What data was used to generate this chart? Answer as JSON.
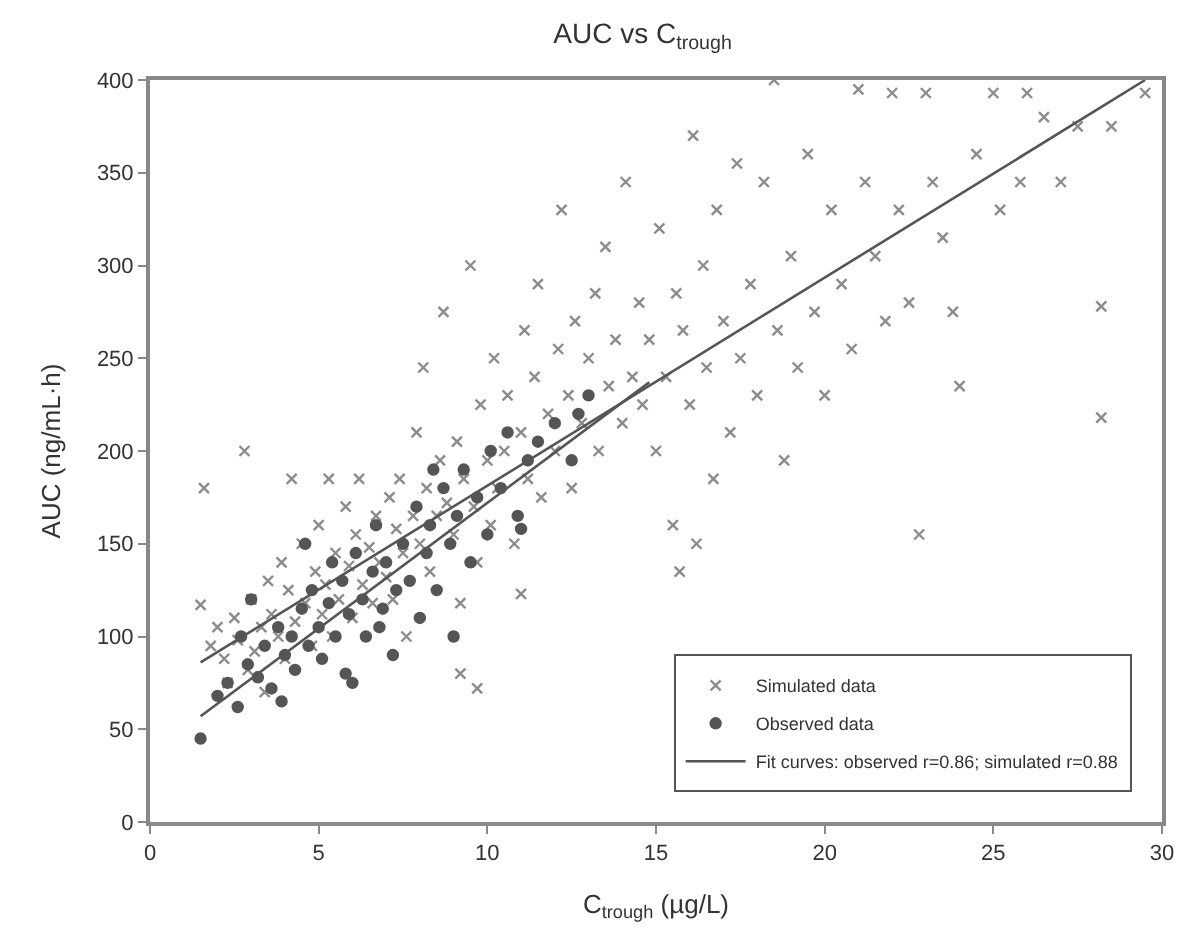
{
  "chart_data": {
    "type": "scatter",
    "title": "AUC vs C$_{trough}$",
    "xlabel": "C$_{trough}$ (µg/L)",
    "ylabel": "AUC (ng/mL·h)",
    "xlim": [
      0,
      30
    ],
    "xticks": [
      0,
      5,
      10,
      15,
      20,
      25,
      30
    ],
    "ylim": [
      0,
      400
    ],
    "yticks": [
      0,
      50,
      100,
      150,
      200,
      250,
      300,
      350,
      400
    ],
    "legend": "bottom right",
    "series": [
      {
        "name": "Simulated data",
        "marker": "cross",
        "color": "#8c8c8c",
        "x": [
          1.5,
          1.6,
          1.8,
          2,
          2.2,
          2.3,
          2.5,
          2.6,
          2.8,
          2.9,
          3,
          3.1,
          3.3,
          3.4,
          3.5,
          3.6,
          3.8,
          3.9,
          4,
          4.1,
          4.2,
          4.3,
          4.5,
          4.6,
          4.8,
          4.9,
          5,
          5.1,
          5.2,
          5.3,
          5.4,
          5.5,
          5.6,
          5.8,
          5.9,
          6,
          6.1,
          6.2,
          6.3,
          6.5,
          6.6,
          6.7,
          6.8,
          7,
          7.1,
          7.2,
          7.3,
          7.4,
          7.5,
          7.6,
          7.8,
          7.9,
          8,
          8.1,
          8.2,
          8.3,
          8.5,
          8.6,
          8.7,
          8.8,
          9,
          9.1,
          9.2,
          9.3,
          9.5,
          9.6,
          9.7,
          9.8,
          10,
          10.1,
          10.2,
          10.3,
          10.5,
          10.6,
          10.8,
          11,
          11.1,
          11.2,
          11.4,
          11.5,
          11.6,
          11.8,
          12,
          12.1,
          12.2,
          12.4,
          12.5,
          12.6,
          12.8,
          13,
          13.2,
          13.3,
          13.5,
          13.6,
          13.8,
          14,
          14.1,
          14.3,
          14.5,
          14.6,
          14.8,
          15,
          15.1,
          15.3,
          15.5,
          15.6,
          15.7,
          15.8,
          16,
          16.1,
          16.2,
          16.4,
          16.5,
          16.7,
          16.8,
          17,
          17.2,
          17.4,
          17.5,
          17.8,
          18,
          18.2,
          18.5,
          18.6,
          18.8,
          19,
          19.2,
          19.5,
          19.7,
          20,
          20.2,
          20.5,
          20.8,
          21,
          21.2,
          21.5,
          21.8,
          22,
          22.2,
          22.5,
          22.8,
          23,
          23.2,
          23.5,
          23.8,
          24,
          24.5,
          25,
          25.2,
          25.8,
          26,
          26.5,
          27,
          27.5,
          28.2,
          28.2,
          28.5,
          29.5,
          9.2,
          9.7,
          11
        ],
        "values": [
          117,
          180,
          95,
          105,
          88,
          75,
          110,
          98,
          200,
          82,
          120,
          92,
          105,
          70,
          130,
          112,
          100,
          140,
          88,
          125,
          185,
          108,
          150,
          118,
          95,
          135,
          160,
          112,
          128,
          185,
          100,
          145,
          120,
          170,
          138,
          110,
          155,
          185,
          128,
          148,
          118,
          165,
          140,
          132,
          175,
          120,
          158,
          185,
          145,
          100,
          165,
          210,
          150,
          245,
          180,
          135,
          165,
          195,
          275,
          172,
          155,
          205,
          118,
          185,
          300,
          170,
          140,
          225,
          195,
          160,
          250,
          180,
          200,
          230,
          150,
          210,
          265,
          185,
          240,
          290,
          175,
          220,
          200,
          255,
          330,
          230,
          180,
          270,
          215,
          250,
          285,
          200,
          310,
          235,
          260,
          215,
          345,
          240,
          280,
          225,
          260,
          200,
          320,
          240,
          160,
          285,
          135,
          265,
          225,
          370,
          150,
          300,
          245,
          185,
          330,
          270,
          210,
          355,
          250,
          290,
          230,
          345,
          400,
          265,
          195,
          305,
          245,
          360,
          275,
          230,
          330,
          290,
          255,
          395,
          345,
          305,
          270,
          393,
          330,
          280,
          155,
          393,
          345,
          315,
          275,
          235,
          360,
          393,
          330,
          345,
          393,
          380,
          345,
          375,
          278,
          218,
          375,
          393,
          80,
          72,
          123
        ]
      },
      {
        "name": "Observed data",
        "marker": "circle",
        "color": "#555555",
        "x": [
          1.5,
          2,
          2.3,
          2.6,
          2.9,
          3.2,
          3.4,
          3.6,
          3.8,
          4,
          4.2,
          4.3,
          4.5,
          4.7,
          4.8,
          5,
          5.1,
          5.3,
          5.4,
          5.5,
          5.7,
          5.9,
          6,
          6.1,
          6.3,
          6.4,
          6.6,
          6.7,
          6.9,
          7,
          7.2,
          7.3,
          7.5,
          7.7,
          7.9,
          8,
          8.2,
          8.3,
          8.5,
          8.7,
          8.9,
          9,
          9.1,
          9.3,
          9.5,
          9.7,
          10,
          10.1,
          10.4,
          10.6,
          10.9,
          11.2,
          11.5,
          12,
          12.5,
          13,
          3,
          4.6,
          5.8,
          6.8,
          8.4,
          11,
          12.7,
          2.7,
          3.9
        ],
        "values": [
          45,
          68,
          75,
          62,
          85,
          78,
          95,
          72,
          105,
          90,
          100,
          82,
          115,
          95,
          125,
          105,
          88,
          118,
          140,
          100,
          130,
          112,
          75,
          145,
          120,
          100,
          135,
          160,
          115,
          140,
          90,
          125,
          150,
          130,
          170,
          110,
          145,
          160,
          125,
          180,
          150,
          100,
          165,
          190,
          140,
          175,
          155,
          200,
          180,
          210,
          165,
          195,
          205,
          215,
          195,
          230,
          120,
          150,
          80,
          105,
          190,
          158,
          220,
          100,
          65
        ]
      },
      {
        "name": "Fit curves: observed r=0.86; simulated r=0.88",
        "type": "line",
        "marker": "none",
        "color": "#555555",
        "x": [
          1.5,
          29.5
        ],
        "values": [
          86,
          400
        ]
      },
      {
        "type": "line",
        "marker": "none",
        "color": "#555555",
        "x": [
          1.5,
          14.8
        ],
        "values": [
          57,
          237
        ]
      }
    ]
  }
}
